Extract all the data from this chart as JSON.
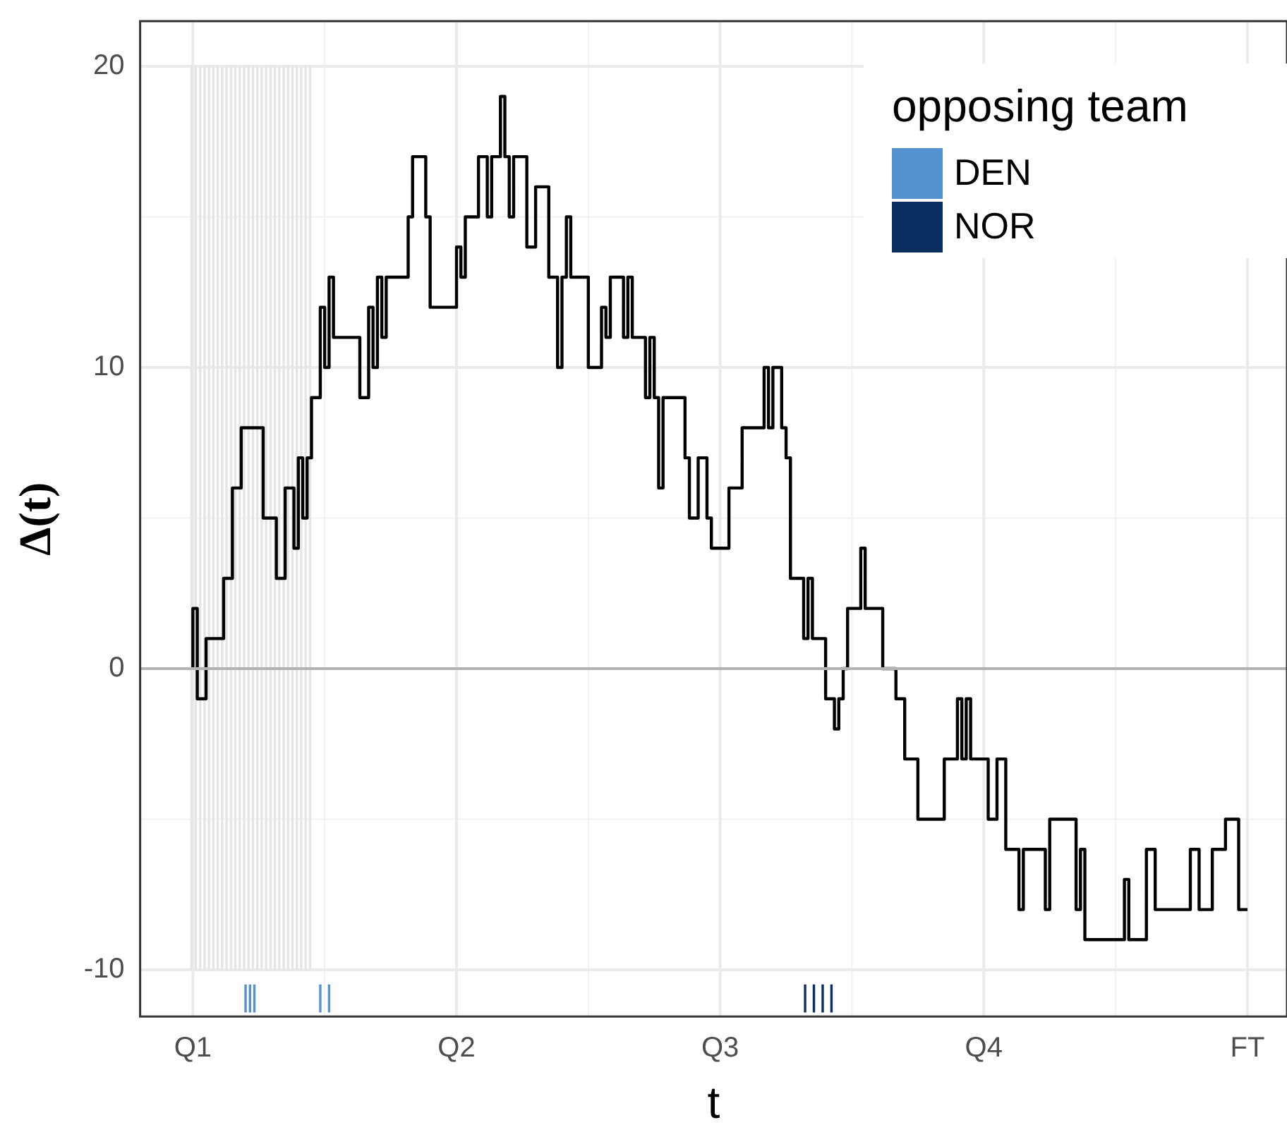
{
  "chart_data": {
    "type": "step",
    "xlabel": "t",
    "ylabel": "Δ(t)",
    "legend_title": "opposing team",
    "legend": "top right",
    "grid": true,
    "marker": "none",
    "line_style": "solid",
    "categories": [
      "Q1",
      null,
      null,
      null,
      null,
      null,
      null,
      null,
      null,
      null,
      null,
      null,
      null,
      null,
      null,
      null,
      null,
      null,
      null,
      null,
      null,
      null,
      null,
      null,
      null,
      null,
      null,
      null,
      null,
      null,
      null,
      null,
      null,
      null,
      null,
      null,
      null,
      null,
      null,
      null,
      null,
      null,
      null,
      null,
      null,
      null,
      null,
      null,
      null,
      null,
      null,
      null,
      null,
      null,
      null,
      null,
      null,
      null,
      null,
      null,
      "Q2",
      null,
      null,
      null,
      null,
      null,
      null,
      null,
      null,
      null,
      null,
      null,
      null,
      null,
      null,
      null,
      null,
      null,
      null,
      null,
      null,
      null,
      null,
      null,
      null,
      null,
      null,
      null,
      null,
      null,
      null,
      null,
      null,
      null,
      null,
      null,
      null,
      null,
      null,
      null,
      null,
      null,
      null,
      null,
      null,
      null,
      null,
      null,
      null,
      null,
      null,
      null,
      null,
      null,
      null,
      null,
      null,
      null,
      null,
      null,
      "Q3",
      null,
      null,
      null,
      null,
      null,
      null,
      null,
      null,
      null,
      null,
      null,
      null,
      null,
      null,
      null,
      null,
      null,
      null,
      null,
      null,
      null,
      null,
      null,
      null,
      null,
      null,
      null,
      null,
      null,
      null,
      null,
      null,
      null,
      null,
      null,
      null,
      null,
      null,
      null,
      null,
      null,
      null,
      null,
      null,
      null,
      null,
      null,
      null,
      null,
      null,
      null,
      null,
      null,
      null,
      null,
      null,
      null,
      null,
      null,
      "Q4",
      null,
      null,
      null,
      null,
      null,
      null,
      null,
      null,
      null,
      null,
      null,
      null,
      null,
      null,
      null,
      null,
      null,
      null,
      null,
      null,
      null,
      null,
      null,
      null,
      null,
      null,
      null,
      null,
      null,
      null,
      null,
      null,
      null,
      null,
      null,
      null,
      null,
      null,
      null,
      null,
      null,
      null,
      null,
      null,
      null,
      null,
      null,
      null,
      null,
      null,
      null,
      null,
      null,
      null,
      null,
      null,
      null,
      null,
      null,
      "FT"
    ],
    "ylim": [
      -11.55,
      21.5
    ],
    "yticks": [
      -10,
      0,
      10,
      20
    ],
    "ref_lines": [
      {
        "axis": "y",
        "value": 0,
        "color": "#b3b3b3"
      }
    ],
    "series": [
      {
        "type": "bar",
        "color": "#e5e5e5",
        "values": [
          30,
          30,
          30,
          30,
          30,
          30,
          30,
          30,
          30,
          30,
          30,
          30,
          30,
          30,
          30,
          30,
          30,
          30,
          30,
          30,
          30,
          30,
          30,
          30,
          30,
          30,
          30,
          30,
          null,
          null,
          null,
          null,
          null,
          null,
          null,
          null,
          null,
          null,
          null,
          null,
          null,
          null,
          null,
          null,
          null,
          null,
          null,
          null,
          null,
          null,
          null,
          null,
          null,
          null,
          null,
          null,
          null,
          null,
          null,
          null,
          null,
          null,
          null,
          null,
          null,
          null,
          null,
          null,
          null,
          null,
          null,
          null,
          null,
          null,
          null,
          null,
          null,
          null,
          null,
          null,
          null,
          null,
          null,
          null,
          null,
          null,
          null,
          null,
          null,
          null,
          null,
          null,
          null,
          null,
          null,
          null,
          null,
          null,
          null,
          null,
          null,
          null,
          null,
          null,
          null,
          null,
          null,
          null,
          null,
          null,
          null,
          null,
          null,
          null,
          null,
          null,
          null,
          null,
          null,
          null,
          null,
          null,
          null,
          null,
          null,
          null,
          null,
          null,
          null,
          null,
          null,
          null,
          null,
          null,
          null,
          null,
          null,
          null,
          null,
          null,
          null,
          null,
          null,
          null,
          null,
          null,
          null,
          null,
          null,
          null,
          null,
          null,
          null,
          null,
          null,
          null,
          null,
          null,
          null,
          null,
          null,
          null,
          null,
          null,
          null,
          null,
          null,
          null,
          null,
          null,
          null,
          null,
          null,
          null,
          null,
          null,
          null,
          null,
          null,
          null,
          null,
          null,
          null,
          null,
          null,
          null,
          null,
          null,
          null,
          null,
          null,
          null,
          null,
          null,
          null,
          null,
          null,
          null,
          null,
          null,
          null,
          null,
          null,
          null,
          null,
          null,
          null,
          null,
          null,
          null,
          null,
          null,
          null,
          null,
          null,
          null,
          null,
          null,
          null,
          null,
          null,
          null,
          null,
          null,
          null,
          null,
          null,
          null,
          null,
          null,
          null,
          null,
          null,
          null,
          null,
          null,
          null,
          null,
          null,
          null,
          null
        ],
        "base": [
          -10,
          -10,
          -10,
          -10,
          -10,
          -10,
          -10,
          -10,
          -10,
          -10,
          -10,
          -10,
          -10,
          -10,
          -10,
          -10,
          -10,
          -10,
          -10,
          -10,
          -10,
          -10,
          -10,
          -10,
          -10,
          -10,
          -10,
          -10,
          null,
          null,
          null,
          null,
          null,
          null,
          null,
          null,
          null,
          null,
          null,
          null,
          null,
          null,
          null,
          null,
          null,
          null,
          null,
          null,
          null,
          null,
          null,
          null,
          null,
          null,
          null,
          null,
          null,
          null,
          null,
          null,
          null,
          null,
          null,
          null,
          null,
          null,
          null,
          null,
          null,
          null,
          null,
          null,
          null,
          null,
          null,
          null,
          null,
          null,
          null,
          null,
          null,
          null,
          null,
          null,
          null,
          null,
          null,
          null,
          null,
          null,
          null,
          null,
          null,
          null,
          null,
          null,
          null,
          null,
          null,
          null,
          null,
          null,
          null,
          null,
          null,
          null,
          null,
          null,
          null,
          null,
          null,
          null,
          null,
          null,
          null,
          null,
          null,
          null,
          null,
          null,
          null,
          null,
          null,
          null,
          null,
          null,
          null,
          null,
          null,
          null,
          null,
          null,
          null,
          null,
          null,
          null,
          null,
          null,
          null,
          null,
          null,
          null,
          null,
          null,
          null,
          null,
          null,
          null,
          null,
          null,
          null,
          null,
          null,
          null,
          null,
          null,
          null,
          null,
          null,
          null,
          null,
          null,
          null,
          null,
          null,
          null,
          null,
          null,
          null,
          null,
          null,
          null,
          null,
          null,
          null,
          null,
          null,
          null,
          null,
          null,
          null,
          null,
          null,
          null,
          null,
          null,
          null,
          null,
          null,
          null,
          null,
          null,
          null,
          null,
          null,
          null,
          null,
          null,
          null,
          null,
          null,
          null,
          null,
          null,
          null,
          null,
          null,
          null,
          null,
          null,
          null,
          null,
          null,
          null,
          null,
          null,
          null,
          null,
          null,
          null,
          null,
          null,
          null,
          null,
          null,
          null,
          null,
          null,
          null,
          null,
          null,
          null,
          null,
          null,
          null,
          null,
          null,
          null,
          null,
          null,
          null
        ]
      },
      {
        "type": "bar",
        "name": "DEN",
        "color": "#5592d0",
        "values": [
          null,
          null,
          null,
          null,
          null,
          null,
          null,
          null,
          null,
          null,
          null,
          null,
          0.9,
          0.9,
          0.9,
          null,
          null,
          null,
          null,
          null,
          null,
          null,
          null,
          null,
          null,
          null,
          null,
          null,
          null,
          0.9,
          null,
          0.9,
          null,
          null,
          null,
          null,
          null,
          null,
          null,
          null,
          null,
          null,
          null,
          null,
          null,
          null,
          null,
          null,
          null,
          null,
          null,
          null,
          null,
          null,
          null,
          null,
          null,
          null,
          null,
          null,
          null,
          null,
          null,
          null,
          null,
          null,
          null,
          null,
          null,
          null,
          null,
          null,
          null,
          null,
          null,
          null,
          null,
          null,
          null,
          null,
          null,
          null,
          null,
          null,
          null,
          null,
          null,
          null,
          null,
          null,
          null,
          null,
          null,
          null,
          null,
          null,
          null,
          null,
          null,
          null,
          null,
          null,
          null,
          null,
          null,
          null,
          null,
          null,
          null,
          null,
          null,
          null,
          null,
          null,
          null,
          null,
          null,
          null,
          null,
          null,
          null,
          null,
          null,
          null,
          null,
          null,
          null,
          null,
          null,
          null,
          null,
          null,
          null,
          null,
          null,
          null,
          null,
          null,
          null,
          null,
          null,
          null,
          null,
          null,
          null,
          null,
          null,
          null,
          null,
          null,
          null,
          null,
          null,
          null,
          null,
          null,
          null,
          null,
          null,
          null,
          null,
          null,
          null,
          null,
          null,
          null,
          null,
          null,
          null,
          null,
          null,
          null,
          null,
          null,
          null,
          null,
          null,
          null,
          null,
          null,
          null,
          null,
          null,
          null,
          null,
          null,
          null,
          null,
          null,
          null,
          null,
          null,
          null,
          null,
          null,
          null,
          null,
          null,
          null,
          null,
          null,
          null,
          null,
          null,
          null,
          null,
          null,
          null,
          null,
          null,
          null,
          null,
          null,
          null,
          null,
          null,
          null,
          null,
          null,
          null,
          null,
          null,
          null,
          null,
          null,
          null,
          null,
          null,
          null,
          null,
          null,
          null,
          null,
          null,
          null,
          null,
          null,
          null,
          null,
          null,
          null
        ],
        "base": [
          null,
          null,
          null,
          null,
          null,
          null,
          null,
          null,
          null,
          null,
          null,
          null,
          -11.4,
          -11.4,
          -11.4,
          null,
          null,
          null,
          null,
          null,
          null,
          null,
          null,
          null,
          null,
          null,
          null,
          null,
          null,
          -11.4,
          null,
          -11.4,
          null,
          null,
          null,
          null,
          null,
          null,
          null,
          null,
          null,
          null,
          null,
          null,
          null,
          null,
          null,
          null,
          null,
          null,
          null,
          null,
          null,
          null,
          null,
          null,
          null,
          null,
          null,
          null,
          null,
          null,
          null,
          null,
          null,
          null,
          null,
          null,
          null,
          null,
          null,
          null,
          null,
          null,
          null,
          null,
          null,
          null,
          null,
          null,
          null,
          null,
          null,
          null,
          null,
          null,
          null,
          null,
          null,
          null,
          null,
          null,
          null,
          null,
          null,
          null,
          null,
          null,
          null,
          null,
          null,
          null,
          null,
          null,
          null,
          null,
          null,
          null,
          null,
          null,
          null,
          null,
          null,
          null,
          null,
          null,
          null,
          null,
          null,
          null,
          null,
          null,
          null,
          null,
          null,
          null,
          null,
          null,
          null,
          null,
          null,
          null,
          null,
          null,
          null,
          null,
          null,
          null,
          null,
          null,
          null,
          null,
          null,
          null,
          null,
          null,
          null,
          null,
          null,
          null,
          null,
          null,
          null,
          null,
          null,
          null,
          null,
          null,
          null,
          null,
          null,
          null,
          null,
          null,
          null,
          null,
          null,
          null,
          null,
          null,
          null,
          null,
          null,
          null,
          null,
          null,
          null,
          null,
          null,
          null,
          null,
          null,
          null,
          null,
          null,
          null,
          null,
          null,
          null,
          null,
          null,
          null,
          null,
          null,
          null,
          null,
          null,
          null,
          null,
          null,
          null,
          null,
          null,
          null,
          null,
          null,
          null,
          null,
          null,
          null,
          null,
          null,
          null,
          null,
          null,
          null,
          null,
          null,
          null,
          null,
          null,
          null,
          null,
          null,
          null,
          null,
          null,
          null,
          null,
          null,
          null,
          null,
          null,
          null,
          null,
          null,
          null,
          null,
          null,
          null,
          null
        ]
      },
      {
        "type": "bar",
        "name": "NOR",
        "color": "#0a2e60",
        "values": [
          null,
          null,
          null,
          null,
          null,
          null,
          null,
          null,
          null,
          null,
          null,
          null,
          null,
          null,
          null,
          null,
          null,
          null,
          null,
          null,
          null,
          null,
          null,
          null,
          null,
          null,
          null,
          null,
          null,
          null,
          null,
          null,
          null,
          null,
          null,
          null,
          null,
          null,
          null,
          null,
          null,
          null,
          null,
          null,
          null,
          null,
          null,
          null,
          null,
          null,
          null,
          null,
          null,
          null,
          null,
          null,
          null,
          null,
          null,
          null,
          null,
          null,
          null,
          null,
          null,
          null,
          null,
          null,
          null,
          null,
          null,
          null,
          null,
          null,
          null,
          null,
          null,
          null,
          null,
          null,
          null,
          null,
          null,
          null,
          null,
          null,
          null,
          null,
          null,
          null,
          null,
          null,
          null,
          null,
          null,
          null,
          null,
          null,
          null,
          null,
          null,
          null,
          null,
          null,
          null,
          null,
          null,
          null,
          null,
          null,
          null,
          null,
          null,
          null,
          null,
          null,
          null,
          null,
          null,
          null,
          null,
          null,
          null,
          null,
          null,
          null,
          null,
          null,
          null,
          null,
          null,
          null,
          null,
          null,
          null,
          null,
          null,
          null,
          null,
          0.9,
          null,
          0.9,
          null,
          0.9,
          null,
          0.9,
          null,
          null,
          null,
          null,
          null,
          null,
          null,
          null,
          null,
          null,
          null,
          null,
          null,
          null,
          null,
          null,
          null,
          null,
          null,
          null,
          null,
          null,
          null,
          null,
          null,
          null,
          null,
          null,
          null,
          null,
          null,
          null,
          null,
          null,
          null,
          null,
          null,
          null,
          null,
          null,
          null,
          null,
          null,
          null,
          null,
          null,
          null,
          null,
          null,
          null,
          null,
          null,
          null,
          null,
          null,
          null,
          null,
          null,
          null,
          null,
          null,
          null,
          null,
          null,
          null,
          null,
          null,
          null,
          null,
          null,
          null,
          null,
          null,
          null,
          null,
          null,
          null,
          null,
          null,
          null,
          null,
          null,
          null,
          null,
          null,
          null,
          null,
          null,
          null,
          null,
          null,
          null,
          null,
          null,
          null
        ],
        "base": [
          null,
          null,
          null,
          null,
          null,
          null,
          null,
          null,
          null,
          null,
          null,
          null,
          null,
          null,
          null,
          null,
          null,
          null,
          null,
          null,
          null,
          null,
          null,
          null,
          null,
          null,
          null,
          null,
          null,
          null,
          null,
          null,
          null,
          null,
          null,
          null,
          null,
          null,
          null,
          null,
          null,
          null,
          null,
          null,
          null,
          null,
          null,
          null,
          null,
          null,
          null,
          null,
          null,
          null,
          null,
          null,
          null,
          null,
          null,
          null,
          null,
          null,
          null,
          null,
          null,
          null,
          null,
          null,
          null,
          null,
          null,
          null,
          null,
          null,
          null,
          null,
          null,
          null,
          null,
          null,
          null,
          null,
          null,
          null,
          null,
          null,
          null,
          null,
          null,
          null,
          null,
          null,
          null,
          null,
          null,
          null,
          null,
          null,
          null,
          null,
          null,
          null,
          null,
          null,
          null,
          null,
          null,
          null,
          null,
          null,
          null,
          null,
          null,
          null,
          null,
          null,
          null,
          null,
          null,
          null,
          null,
          null,
          null,
          null,
          null,
          null,
          null,
          null,
          null,
          null,
          null,
          null,
          null,
          null,
          null,
          null,
          null,
          null,
          null,
          -11.4,
          null,
          -11.4,
          null,
          -11.4,
          null,
          -11.4,
          null,
          null,
          null,
          null,
          null,
          null,
          null,
          null,
          null,
          null,
          null,
          null,
          null,
          null,
          null,
          null,
          null,
          null,
          null,
          null,
          null,
          null,
          null,
          null,
          null,
          null,
          null,
          null,
          null,
          null,
          null,
          null,
          null,
          null,
          null,
          null,
          null,
          null,
          null,
          null,
          null,
          null,
          null,
          null,
          null,
          null,
          null,
          null,
          null,
          null,
          null,
          null,
          null,
          null,
          null,
          null,
          null,
          null,
          null,
          null,
          null,
          null,
          null,
          null,
          null,
          null,
          null,
          null,
          null,
          null,
          null,
          null,
          null,
          null,
          null,
          null,
          null,
          null,
          null,
          null,
          null,
          null,
          null,
          null,
          null,
          null,
          null,
          null,
          null,
          null,
          null,
          null,
          null,
          null,
          null
        ]
      },
      {
        "color": "#000000",
        "values": [
          0,
          2,
          -1,
          -1,
          1,
          1,
          1,
          1,
          3,
          3,
          6,
          6,
          8,
          8,
          8,
          8,
          8,
          5,
          5,
          5,
          3,
          3,
          6,
          6,
          4,
          7,
          5,
          7,
          9,
          9,
          12,
          10,
          13,
          11,
          11,
          11,
          11,
          11,
          11,
          9,
          9,
          12,
          10,
          13,
          11,
          13,
          13,
          13,
          13,
          13,
          15,
          17,
          17,
          17,
          15,
          12,
          12,
          12,
          12,
          12,
          12,
          14,
          13,
          15,
          15,
          15,
          17,
          17,
          15,
          17,
          17,
          19,
          17,
          15,
          17,
          17,
          17,
          14,
          14,
          16,
          16,
          16,
          13,
          13,
          10,
          13,
          15,
          13,
          13,
          13,
          13,
          10,
          10,
          10,
          12,
          11,
          13,
          13,
          13,
          11,
          13,
          11,
          11,
          11,
          9,
          11,
          9,
          6,
          9,
          9,
          9,
          9,
          9,
          7,
          5,
          5,
          7,
          7,
          5,
          4,
          4,
          4,
          4,
          6,
          6,
          6,
          8,
          8,
          8,
          8,
          8,
          10,
          8,
          10,
          10,
          8,
          7,
          3,
          3,
          3,
          1,
          3,
          1,
          1,
          1,
          -1,
          -1,
          -2,
          -1,
          0,
          2,
          2,
          2,
          4,
          2,
          2,
          2,
          2,
          0,
          0,
          0,
          -1,
          -1,
          -3,
          -3,
          -3,
          -5,
          -5,
          -5,
          -5,
          -5,
          -5,
          -3,
          -3,
          -3,
          -1,
          -3,
          -1,
          -3,
          -3,
          -3,
          -3,
          -5,
          -5,
          -3,
          -3,
          -6,
          -6,
          -6,
          -8,
          -6,
          -6,
          -6,
          -6,
          -6,
          -8,
          -5,
          -5,
          -5,
          -5,
          -5,
          -5,
          -8,
          -6,
          -9,
          -9,
          -9,
          -9,
          -9,
          -9,
          -9,
          -9,
          -9,
          -7,
          -9,
          -9,
          -9,
          -9,
          -6,
          -6,
          -8,
          -8,
          -8,
          -8,
          -8,
          -8,
          -8,
          -8,
          -6,
          -6,
          -8,
          -8,
          -8,
          -6,
          -6,
          -6,
          -5,
          -5,
          -5,
          -8,
          -8
        ]
      }
    ]
  }
}
